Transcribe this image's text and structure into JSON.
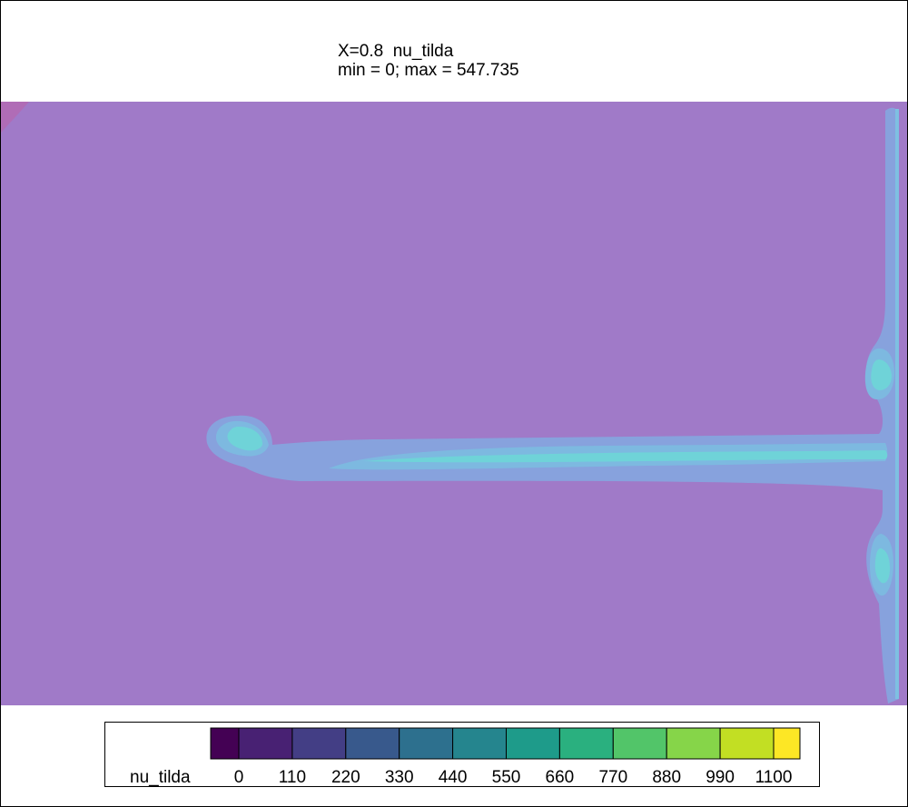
{
  "title": {
    "line1": "X=0.8  nu_tilda",
    "line2": "min = 0; max = 547.735"
  },
  "chart_data": {
    "type": "heatmap",
    "field": "nu_tilda",
    "slice": "X=0.8",
    "min": 0,
    "max": 547.735,
    "background_color": "#a07ac8",
    "colorbar": {
      "label": "nu_tilda",
      "ticks": [
        0,
        110,
        220,
        330,
        440,
        550,
        660,
        770,
        880,
        990,
        1100
      ],
      "colors": [
        "#440154",
        "#482173",
        "#433e85",
        "#38598c",
        "#2d708e",
        "#25858e",
        "#1e9b8a",
        "#2ab07f",
        "#52c569",
        "#86d549",
        "#c2df23",
        "#fde725"
      ]
    }
  }
}
